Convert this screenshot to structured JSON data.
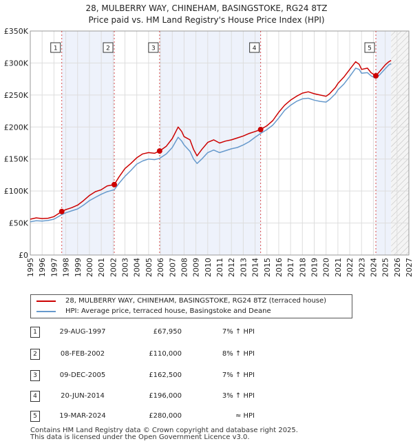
{
  "chart_data": {
    "type": "line",
    "title": "28, MULBERRY WAY, CHINEHAM, BASINGSTOKE, RG24 8TZ",
    "subtitle": "Price paid vs. HM Land Registry's House Price Index (HPI)",
    "xlim": [
      1995,
      2027
    ],
    "ylim": [
      0,
      350000
    ],
    "x_ticks": [
      "1995",
      "1996",
      "1997",
      "1998",
      "1999",
      "2000",
      "2001",
      "2002",
      "2003",
      "2004",
      "2005",
      "2006",
      "2007",
      "2008",
      "2009",
      "2010",
      "2011",
      "2012",
      "2013",
      "2014",
      "2015",
      "2016",
      "2017",
      "2018",
      "2019",
      "2020",
      "2021",
      "2022",
      "2023",
      "2024",
      "2025",
      "2026",
      "2027"
    ],
    "y_ticks": [
      {
        "value": 0,
        "label": "£0"
      },
      {
        "value": 50000,
        "label": "£50K"
      },
      {
        "value": 100000,
        "label": "£100K"
      },
      {
        "value": 150000,
        "label": "£150K"
      },
      {
        "value": 200000,
        "label": "£200K"
      },
      {
        "value": 250000,
        "label": "£250K"
      },
      {
        "value": 300000,
        "label": "£300K"
      },
      {
        "value": 350000,
        "label": "£350K"
      }
    ],
    "forecast_start": 2025.5,
    "colors": {
      "property": "#cc0000",
      "hpi": "#6699cc",
      "shade": "#eef2fb",
      "sale_line": "#cc0000"
    },
    "series": [
      {
        "name": "28, MULBERRY WAY, CHINEHAM, BASINGSTOKE, RG24 8TZ (terraced house)",
        "color": "#cc0000",
        "points": [
          [
            1995,
            56000
          ],
          [
            1995.5,
            58000
          ],
          [
            1996,
            57000
          ],
          [
            1996.5,
            57500
          ],
          [
            1997,
            60000
          ],
          [
            1997.66,
            67950
          ],
          [
            1998,
            71000
          ],
          [
            1998.5,
            74000
          ],
          [
            1999,
            78000
          ],
          [
            1999.5,
            85000
          ],
          [
            2000,
            93000
          ],
          [
            2000.5,
            99000
          ],
          [
            2001,
            102000
          ],
          [
            2001.5,
            108000
          ],
          [
            2002.1,
            110000
          ],
          [
            2002.5,
            122000
          ],
          [
            2003,
            135000
          ],
          [
            2003.5,
            143000
          ],
          [
            2004,
            152000
          ],
          [
            2004.5,
            158000
          ],
          [
            2005,
            160000
          ],
          [
            2005.5,
            159000
          ],
          [
            2005.93,
            162500
          ],
          [
            2006.5,
            170000
          ],
          [
            2007,
            182000
          ],
          [
            2007.5,
            200000
          ],
          [
            2007.8,
            193000
          ],
          [
            2008,
            185000
          ],
          [
            2008.5,
            180000
          ],
          [
            2008.8,
            165000
          ],
          [
            2009.1,
            155000
          ],
          [
            2009.5,
            165000
          ],
          [
            2010,
            176000
          ],
          [
            2010.5,
            180000
          ],
          [
            2011,
            175000
          ],
          [
            2011.5,
            178000
          ],
          [
            2012,
            180000
          ],
          [
            2012.5,
            183000
          ],
          [
            2013,
            186000
          ],
          [
            2013.5,
            190000
          ],
          [
            2014,
            193000
          ],
          [
            2014.47,
            196000
          ],
          [
            2015,
            202000
          ],
          [
            2015.5,
            210000
          ],
          [
            2016,
            223000
          ],
          [
            2016.5,
            234000
          ],
          [
            2017,
            242000
          ],
          [
            2017.5,
            248000
          ],
          [
            2018,
            253000
          ],
          [
            2018.5,
            255000
          ],
          [
            2019,
            252000
          ],
          [
            2019.5,
            250000
          ],
          [
            2020,
            248000
          ],
          [
            2020.3,
            252000
          ],
          [
            2020.8,
            262000
          ],
          [
            2021,
            268000
          ],
          [
            2021.5,
            278000
          ],
          [
            2022,
            290000
          ],
          [
            2022.5,
            302000
          ],
          [
            2022.8,
            298000
          ],
          [
            2023,
            290000
          ],
          [
            2023.5,
            292000
          ],
          [
            2023.8,
            285000
          ],
          [
            2024.21,
            280000
          ],
          [
            2024.5,
            286000
          ],
          [
            2025,
            297000
          ],
          [
            2025.3,
            302000
          ],
          [
            2025.5,
            304000
          ]
        ]
      },
      {
        "name": "HPI: Average price, terraced house, Basingstoke and Deane",
        "color": "#6699cc",
        "points": [
          [
            1995,
            52000
          ],
          [
            1995.5,
            53500
          ],
          [
            1996,
            53000
          ],
          [
            1996.5,
            54000
          ],
          [
            1997,
            56000
          ],
          [
            1997.66,
            63000
          ],
          [
            1998,
            66000
          ],
          [
            1998.5,
            69000
          ],
          [
            1999,
            72000
          ],
          [
            1999.5,
            78000
          ],
          [
            2000,
            85000
          ],
          [
            2000.5,
            90000
          ],
          [
            2001,
            95000
          ],
          [
            2001.5,
            99000
          ],
          [
            2002.1,
            102000
          ],
          [
            2002.5,
            112000
          ],
          [
            2003,
            123000
          ],
          [
            2003.5,
            132000
          ],
          [
            2004,
            142000
          ],
          [
            2004.5,
            147000
          ],
          [
            2005,
            150000
          ],
          [
            2005.5,
            149000
          ],
          [
            2005.93,
            151000
          ],
          [
            2006.5,
            158000
          ],
          [
            2007,
            168000
          ],
          [
            2007.5,
            184000
          ],
          [
            2007.8,
            178000
          ],
          [
            2008,
            172000
          ],
          [
            2008.5,
            162000
          ],
          [
            2008.8,
            150000
          ],
          [
            2009.1,
            143000
          ],
          [
            2009.5,
            150000
          ],
          [
            2010,
            160000
          ],
          [
            2010.5,
            164000
          ],
          [
            2011,
            160000
          ],
          [
            2011.5,
            163000
          ],
          [
            2012,
            166000
          ],
          [
            2012.5,
            168000
          ],
          [
            2013,
            172000
          ],
          [
            2013.5,
            177000
          ],
          [
            2014,
            184000
          ],
          [
            2014.47,
            190000
          ],
          [
            2015,
            196000
          ],
          [
            2015.5,
            203000
          ],
          [
            2016,
            214000
          ],
          [
            2016.5,
            226000
          ],
          [
            2017,
            234000
          ],
          [
            2017.5,
            240000
          ],
          [
            2018,
            244000
          ],
          [
            2018.5,
            245000
          ],
          [
            2019,
            242000
          ],
          [
            2019.5,
            240000
          ],
          [
            2020,
            239000
          ],
          [
            2020.3,
            243000
          ],
          [
            2020.8,
            252000
          ],
          [
            2021,
            258000
          ],
          [
            2021.5,
            267000
          ],
          [
            2022,
            279000
          ],
          [
            2022.5,
            292000
          ],
          [
            2022.8,
            290000
          ],
          [
            2023,
            284000
          ],
          [
            2023.5,
            285000
          ],
          [
            2023.8,
            280000
          ],
          [
            2024.21,
            276000
          ],
          [
            2024.5,
            281000
          ],
          [
            2025,
            291000
          ],
          [
            2025.3,
            297000
          ],
          [
            2025.5,
            299000
          ]
        ]
      }
    ],
    "sales": [
      {
        "num": "1",
        "x": 1997.66,
        "price": 67950
      },
      {
        "num": "2",
        "x": 2002.1,
        "price": 110000
      },
      {
        "num": "3",
        "x": 2005.93,
        "price": 162500
      },
      {
        "num": "4",
        "x": 2014.47,
        "price": 196000
      },
      {
        "num": "5",
        "x": 2024.21,
        "price": 280000
      }
    ]
  },
  "legend": {
    "property": "28, MULBERRY WAY, CHINEHAM, BASINGSTOKE, RG24 8TZ (terraced house)",
    "hpi": "HPI: Average price, terraced house, Basingstoke and Deane"
  },
  "table": [
    {
      "num": "1",
      "date": "29-AUG-1997",
      "price": "£67,950",
      "hpi": "7% ↑ HPI"
    },
    {
      "num": "2",
      "date": "08-FEB-2002",
      "price": "£110,000",
      "hpi": "8% ↑ HPI"
    },
    {
      "num": "3",
      "date": "09-DEC-2005",
      "price": "£162,500",
      "hpi": "7% ↑ HPI"
    },
    {
      "num": "4",
      "date": "20-JUN-2014",
      "price": "£196,000",
      "hpi": "3% ↑ HPI"
    },
    {
      "num": "5",
      "date": "19-MAR-2024",
      "price": "£280,000",
      "hpi": "≈ HPI"
    }
  ],
  "footer": {
    "line1": "Contains HM Land Registry data © Crown copyright and database right 2025.",
    "line2": "This data is licensed under the Open Government Licence v3.0."
  }
}
